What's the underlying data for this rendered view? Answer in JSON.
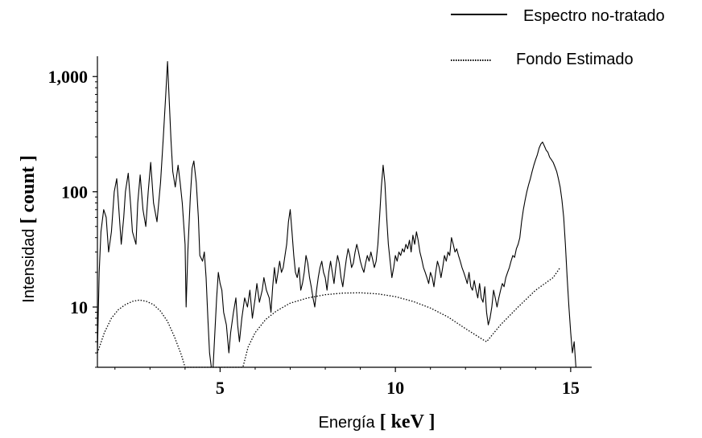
{
  "chart_data": {
    "type": "line",
    "title": "",
    "xlabel": {
      "prefix": "Energía",
      "unit": "[ keV ]"
    },
    "ylabel": {
      "prefix": "Intensidad",
      "unit": "[ count ]"
    },
    "xlim": [
      1.5,
      15.6
    ],
    "ylim": [
      3,
      1500
    ],
    "yscale": "log",
    "grid": false,
    "legend_position": "top-right",
    "x_ticks": [
      {
        "value": 5,
        "label": "5"
      },
      {
        "value": 10,
        "label": "10"
      },
      {
        "value": 15,
        "label": "15"
      }
    ],
    "y_ticks": [
      {
        "value": 10,
        "label": "10"
      },
      {
        "value": 100,
        "label": "100"
      },
      {
        "value": 1000,
        "label": "1,000"
      }
    ],
    "series": [
      {
        "name": "Espectro no-tratado",
        "style": "solid",
        "color": "#000000",
        "points": [
          [
            1.5,
            4
          ],
          [
            1.55,
            20
          ],
          [
            1.6,
            45
          ],
          [
            1.68,
            70
          ],
          [
            1.75,
            60
          ],
          [
            1.82,
            30
          ],
          [
            1.9,
            45
          ],
          [
            1.98,
            100
          ],
          [
            2.05,
            130
          ],
          [
            2.1,
            80
          ],
          [
            2.18,
            35
          ],
          [
            2.25,
            60
          ],
          [
            2.3,
            100
          ],
          [
            2.38,
            145
          ],
          [
            2.45,
            75
          ],
          [
            2.5,
            45
          ],
          [
            2.6,
            35
          ],
          [
            2.65,
            80
          ],
          [
            2.72,
            140
          ],
          [
            2.8,
            70
          ],
          [
            2.88,
            50
          ],
          [
            2.95,
            100
          ],
          [
            3.02,
            180
          ],
          [
            3.1,
            80
          ],
          [
            3.2,
            55
          ],
          [
            3.3,
            120
          ],
          [
            3.38,
            300
          ],
          [
            3.45,
            700
          ],
          [
            3.5,
            1350
          ],
          [
            3.55,
            600
          ],
          [
            3.6,
            280
          ],
          [
            3.65,
            150
          ],
          [
            3.72,
            110
          ],
          [
            3.8,
            170
          ],
          [
            3.86,
            120
          ],
          [
            3.92,
            80
          ],
          [
            4.0,
            35
          ],
          [
            4.03,
            10
          ],
          [
            4.08,
            30
          ],
          [
            4.15,
            90
          ],
          [
            4.2,
            160
          ],
          [
            4.25,
            185
          ],
          [
            4.32,
            120
          ],
          [
            4.38,
            60
          ],
          [
            4.42,
            28
          ],
          [
            4.5,
            25
          ],
          [
            4.55,
            30
          ],
          [
            4.6,
            18
          ],
          [
            4.65,
            8
          ],
          [
            4.7,
            4
          ],
          [
            4.75,
            3
          ],
          [
            4.8,
            3
          ],
          [
            4.85,
            6
          ],
          [
            4.9,
            12
          ],
          [
            4.95,
            20
          ],
          [
            5.0,
            16
          ],
          [
            5.05,
            14
          ],
          [
            5.1,
            9
          ],
          [
            5.18,
            7
          ],
          [
            5.25,
            4
          ],
          [
            5.3,
            6
          ],
          [
            5.38,
            9
          ],
          [
            5.45,
            12
          ],
          [
            5.5,
            7
          ],
          [
            5.55,
            5
          ],
          [
            5.62,
            8
          ],
          [
            5.7,
            12
          ],
          [
            5.78,
            10
          ],
          [
            5.85,
            14
          ],
          [
            5.92,
            8
          ],
          [
            6.0,
            12
          ],
          [
            6.05,
            16
          ],
          [
            6.12,
            11
          ],
          [
            6.2,
            14
          ],
          [
            6.25,
            18
          ],
          [
            6.32,
            14
          ],
          [
            6.4,
            12
          ],
          [
            6.45,
            9
          ],
          [
            6.5,
            15
          ],
          [
            6.55,
            22
          ],
          [
            6.6,
            16
          ],
          [
            6.65,
            20
          ],
          [
            6.7,
            25
          ],
          [
            6.75,
            20
          ],
          [
            6.8,
            22
          ],
          [
            6.85,
            28
          ],
          [
            6.9,
            35
          ],
          [
            6.95,
            55
          ],
          [
            7.0,
            70
          ],
          [
            7.05,
            45
          ],
          [
            7.1,
            28
          ],
          [
            7.15,
            20
          ],
          [
            7.2,
            18
          ],
          [
            7.25,
            22
          ],
          [
            7.3,
            14
          ],
          [
            7.35,
            16
          ],
          [
            7.4,
            20
          ],
          [
            7.45,
            28
          ],
          [
            7.5,
            24
          ],
          [
            7.55,
            18
          ],
          [
            7.6,
            15
          ],
          [
            7.65,
            12
          ],
          [
            7.7,
            10
          ],
          [
            7.75,
            14
          ],
          [
            7.8,
            18
          ],
          [
            7.85,
            22
          ],
          [
            7.9,
            25
          ],
          [
            7.95,
            20
          ],
          [
            8.0,
            18
          ],
          [
            8.05,
            14
          ],
          [
            8.1,
            20
          ],
          [
            8.15,
            25
          ],
          [
            8.2,
            20
          ],
          [
            8.25,
            16
          ],
          [
            8.3,
            22
          ],
          [
            8.35,
            28
          ],
          [
            8.4,
            24
          ],
          [
            8.45,
            18
          ],
          [
            8.5,
            15
          ],
          [
            8.55,
            20
          ],
          [
            8.6,
            26
          ],
          [
            8.65,
            32
          ],
          [
            8.7,
            28
          ],
          [
            8.75,
            22
          ],
          [
            8.8,
            24
          ],
          [
            8.85,
            30
          ],
          [
            8.9,
            35
          ],
          [
            8.95,
            30
          ],
          [
            9.0,
            25
          ],
          [
            9.05,
            22
          ],
          [
            9.1,
            20
          ],
          [
            9.15,
            24
          ],
          [
            9.2,
            28
          ],
          [
            9.25,
            25
          ],
          [
            9.3,
            30
          ],
          [
            9.35,
            26
          ],
          [
            9.4,
            22
          ],
          [
            9.45,
            25
          ],
          [
            9.5,
            35
          ],
          [
            9.55,
            60
          ],
          [
            9.6,
            110
          ],
          [
            9.65,
            170
          ],
          [
            9.7,
            120
          ],
          [
            9.75,
            60
          ],
          [
            9.8,
            35
          ],
          [
            9.85,
            25
          ],
          [
            9.9,
            18
          ],
          [
            9.95,
            22
          ],
          [
            10.0,
            28
          ],
          [
            10.05,
            25
          ],
          [
            10.1,
            30
          ],
          [
            10.15,
            28
          ],
          [
            10.2,
            32
          ],
          [
            10.25,
            30
          ],
          [
            10.3,
            35
          ],
          [
            10.35,
            32
          ],
          [
            10.4,
            38
          ],
          [
            10.45,
            30
          ],
          [
            10.5,
            42
          ],
          [
            10.55,
            35
          ],
          [
            10.6,
            45
          ],
          [
            10.65,
            38
          ],
          [
            10.7,
            30
          ],
          [
            10.75,
            26
          ],
          [
            10.8,
            22
          ],
          [
            10.85,
            20
          ],
          [
            10.9,
            18
          ],
          [
            10.95,
            16
          ],
          [
            11.0,
            20
          ],
          [
            11.05,
            18
          ],
          [
            11.1,
            15
          ],
          [
            11.15,
            20
          ],
          [
            11.2,
            25
          ],
          [
            11.25,
            22
          ],
          [
            11.3,
            18
          ],
          [
            11.35,
            22
          ],
          [
            11.4,
            28
          ],
          [
            11.45,
            25
          ],
          [
            11.5,
            30
          ],
          [
            11.55,
            28
          ],
          [
            11.6,
            40
          ],
          [
            11.65,
            35
          ],
          [
            11.7,
            30
          ],
          [
            11.75,
            32
          ],
          [
            11.8,
            28
          ],
          [
            11.85,
            25
          ],
          [
            11.9,
            22
          ],
          [
            11.95,
            20
          ],
          [
            12.0,
            18
          ],
          [
            12.05,
            16
          ],
          [
            12.1,
            20
          ],
          [
            12.15,
            15
          ],
          [
            12.2,
            14
          ],
          [
            12.25,
            17
          ],
          [
            12.3,
            14
          ],
          [
            12.35,
            12
          ],
          [
            12.4,
            16
          ],
          [
            12.45,
            12
          ],
          [
            12.5,
            11
          ],
          [
            12.55,
            15
          ],
          [
            12.6,
            9
          ],
          [
            12.65,
            7
          ],
          [
            12.7,
            8
          ],
          [
            12.75,
            10
          ],
          [
            12.8,
            14
          ],
          [
            12.85,
            12
          ],
          [
            12.9,
            10
          ],
          [
            12.95,
            12
          ],
          [
            13.0,
            14
          ],
          [
            13.05,
            16
          ],
          [
            13.1,
            15
          ],
          [
            13.15,
            18
          ],
          [
            13.2,
            20
          ],
          [
            13.25,
            22
          ],
          [
            13.3,
            25
          ],
          [
            13.35,
            28
          ],
          [
            13.4,
            27
          ],
          [
            13.45,
            32
          ],
          [
            13.5,
            35
          ],
          [
            13.55,
            40
          ],
          [
            13.6,
            55
          ],
          [
            13.65,
            70
          ],
          [
            13.7,
            85
          ],
          [
            13.75,
            100
          ],
          [
            13.8,
            115
          ],
          [
            13.85,
            130
          ],
          [
            13.9,
            150
          ],
          [
            13.95,
            170
          ],
          [
            14.0,
            190
          ],
          [
            14.05,
            210
          ],
          [
            14.1,
            240
          ],
          [
            14.15,
            260
          ],
          [
            14.2,
            270
          ],
          [
            14.25,
            250
          ],
          [
            14.3,
            230
          ],
          [
            14.35,
            220
          ],
          [
            14.4,
            200
          ],
          [
            14.45,
            190
          ],
          [
            14.5,
            180
          ],
          [
            14.55,
            165
          ],
          [
            14.6,
            150
          ],
          [
            14.65,
            130
          ],
          [
            14.7,
            110
          ],
          [
            14.75,
            85
          ],
          [
            14.8,
            60
          ],
          [
            14.85,
            35
          ],
          [
            14.9,
            18
          ],
          [
            14.95,
            10
          ],
          [
            15.0,
            6
          ],
          [
            15.05,
            4
          ],
          [
            15.1,
            5
          ],
          [
            15.15,
            3
          ]
        ]
      },
      {
        "name": "Fondo Estimado",
        "style": "dotted",
        "color": "#000000",
        "points": [
          [
            1.5,
            4
          ],
          [
            1.7,
            6
          ],
          [
            1.9,
            8
          ],
          [
            2.1,
            9.5
          ],
          [
            2.3,
            10.5
          ],
          [
            2.5,
            11.2
          ],
          [
            2.7,
            11.5
          ],
          [
            2.9,
            11.2
          ],
          [
            3.1,
            10.5
          ],
          [
            3.3,
            9.2
          ],
          [
            3.5,
            7.5
          ],
          [
            3.7,
            5.5
          ],
          [
            3.9,
            3.8
          ],
          [
            4.0,
            3
          ],
          [
            5.65,
            3
          ],
          [
            5.8,
            4.5
          ],
          [
            6.0,
            6
          ],
          [
            6.3,
            7.8
          ],
          [
            6.6,
            9.2
          ],
          [
            7.0,
            10.8
          ],
          [
            7.5,
            12
          ],
          [
            8.0,
            12.8
          ],
          [
            8.5,
            13.2
          ],
          [
            9.0,
            13.3
          ],
          [
            9.5,
            13
          ],
          [
            10.0,
            12.3
          ],
          [
            10.5,
            11.2
          ],
          [
            11.0,
            9.8
          ],
          [
            11.5,
            8.2
          ],
          [
            12.0,
            6.5
          ],
          [
            12.5,
            5.2
          ],
          [
            12.6,
            5
          ],
          [
            13.0,
            7
          ],
          [
            13.5,
            10
          ],
          [
            14.0,
            14
          ],
          [
            14.5,
            18
          ],
          [
            14.7,
            22
          ]
        ]
      }
    ]
  }
}
